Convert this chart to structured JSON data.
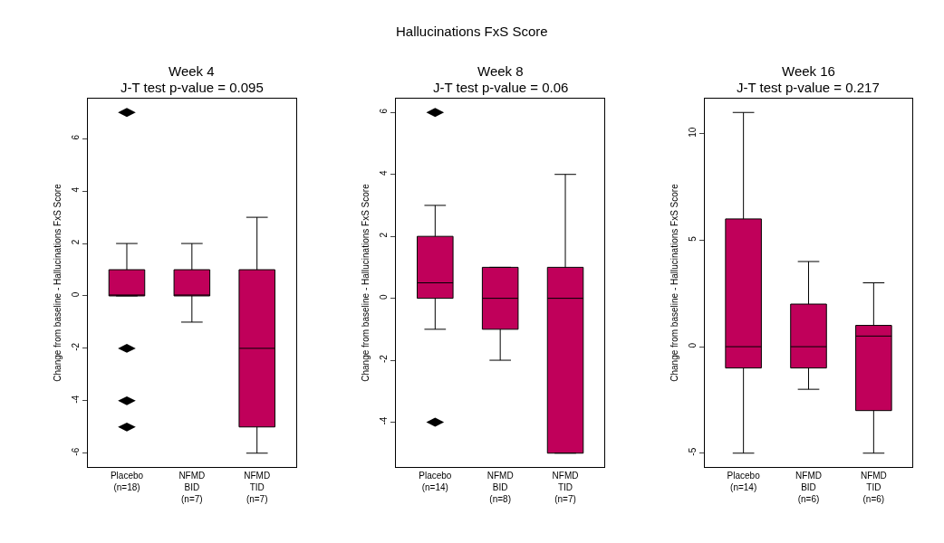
{
  "chart_data": [
    {
      "type": "box",
      "title": "Week 4",
      "subtitle": "J-T test p-value = 0.095",
      "annotations": [
        "Hallucinations FxS Score"
      ],
      "ylabel": "Change from baseline - Hallucinations FxS Score",
      "categories": [
        "Placebo\n(n=18)",
        "NFMD\nBID\n(n=7)",
        "NFMD\nTID\n(n=7)"
      ],
      "color": "#c0005a",
      "boxes": [
        {
          "low": 0,
          "q1": 0,
          "median": 0,
          "q3": 1,
          "high": 2,
          "outliers": [
            -2,
            -4,
            -5,
            7
          ]
        },
        {
          "low": -1,
          "q1": 0,
          "median": 0,
          "q3": 1,
          "high": 2
        },
        {
          "low": -6,
          "q1": -5,
          "median": -2,
          "q3": 1,
          "high": 3
        }
      ],
      "ylim": [
        -6.52,
        7.52
      ],
      "yticks": [
        -6,
        -4,
        -2,
        0,
        2,
        4,
        6
      ]
    },
    {
      "type": "box",
      "title": "Week 8",
      "subtitle": "J-T test p-value = 0.06",
      "ylabel": "Change from baseline - Hallucinations FxS Score",
      "categories": [
        "Placebo\n(n=14)",
        "NFMD\nBID\n(n=8)",
        "NFMD\nTID\n(n=7)"
      ],
      "color": "#c0005a",
      "boxes": [
        {
          "low": -1,
          "q1": 0,
          "median": 0.5,
          "q3": 2,
          "high": 3,
          "outliers": [
            -4,
            6
          ]
        },
        {
          "low": -2,
          "q1": -1,
          "median": 0,
          "q3": 1,
          "high": 1
        },
        {
          "low": -5,
          "q1": -5,
          "median": 0,
          "q3": 1,
          "high": 4
        }
      ],
      "ylim": [
        -5.44,
        6.44
      ],
      "yticks": [
        -4,
        -2,
        0,
        2,
        4,
        6
      ]
    },
    {
      "type": "box",
      "title": "Week 16",
      "subtitle": "J-T test p-value = 0.217",
      "ylabel": "Change from baseline - Hallucinations FxS Score",
      "categories": [
        "Placebo\n(n=14)",
        "NFMD\nBID\n(n=6)",
        "NFMD\nTID\n(n=6)"
      ],
      "color": "#c0005a",
      "boxes": [
        {
          "low": -5,
          "q1": -1,
          "median": 0,
          "q3": 6,
          "high": 11
        },
        {
          "low": -2,
          "q1": -1,
          "median": 0,
          "q3": 2,
          "high": 4
        },
        {
          "low": -5,
          "q1": -3,
          "median": 0.5,
          "q3": 1,
          "high": 3
        }
      ],
      "ylim": [
        -5.64,
        11.64
      ],
      "yticks": [
        -5,
        0,
        5,
        10
      ]
    }
  ]
}
